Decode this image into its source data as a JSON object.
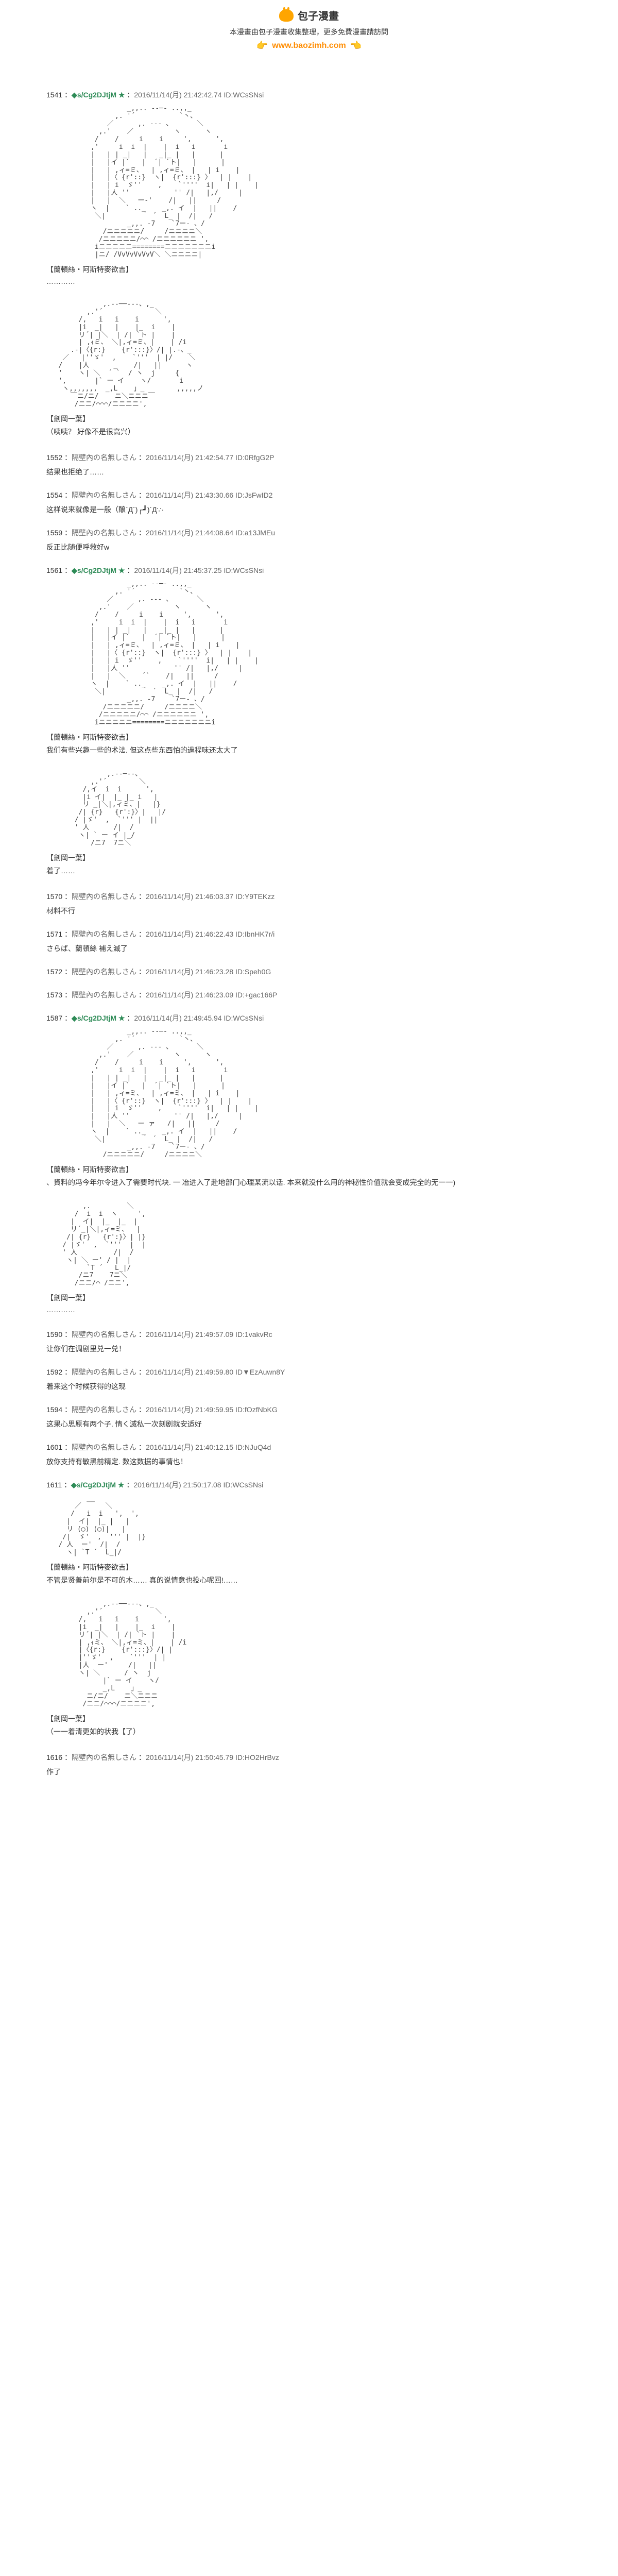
{
  "header": {
    "logo_text": "包子漫畫",
    "subtitle": "本漫畫由包子漫畫收集整理，更多免費漫畫請訪問",
    "site_url": "www.baozimh.com"
  },
  "posts": [
    {
      "num": "1541",
      "name": "◆s/Cg2DJtjM ★",
      "timestamp": "2016/11/14(月) 21:42:42.74",
      "id": "ID:WCsSNsi",
      "ascii": "                    _,,.. -‐─- ..,,_\n                 ,. '´           `丶、\n               ／      ,. -‐- 、      ＼\n             ,.'    ／          ヽ      ヽ\n            /    /     i    i     ',      ',\n           ,'     i  i  |    |  i   i       i\n           |   | | _|   |   _|_ |   |      |\n           |   |イ |`   |  ´| `ト|   |      |\n           |   | ,ィ=ミ、  | ,ィ=ミ、 |   | i    |\n           |   |〈 {r'::}  ヽ|  {r':::} 〉  | |    |\n           |   | i  ゞ''    ,    `''''  i|   | |    |\n           |   |人 ''           '' /|   |,/     |\n           |   |  ＼   ー‐'    /|   ||     /\n           ヽ  |    ` .._    _,. イ  |   ||    /\n            ＼|         ｀ ´  L_ |  /|   /\n                    _,,. -7    `7ー- 、/\n              /ニニニニニ/     /ニニニニ＼\n             /ニニニニニ/⌒⌒ /ニニニニニニ ',\n            iニニニニニ========ニニニニニニニi\n            |ニ/ /VvVvVvVvV＼ ＼ニニニニ|",
      "speaker": "【蘭頓絲・阿斯特麥欲吉】",
      "dialogue": "…………"
    },
    {
      "num": "",
      "ascii": "              ,.--──‐--、,_\n          ,.'´             ＼\n        /,   i   i    i      ',\n        |i  _|   |    |_  i    |\n        リ´| |＼  | /| `ト |    |\n        | ,ｨミ、 ＼|,ィ=ミ、|    | /i\n      .-|〈{r:}    {r':::}〉/| |.-、_\n    ／   |''ゞ'  ,    `'''  | |/    ＼\n   /    |人      _    /|   ||      ヽ\n   '    ヽ| ＼  ´ `  / ヽ  j     {\n   ',       |` ー イ    ヽ/       i\n    ヽ,,,,,,,  _,L    」_        ,,,,,ノ\n      ￣ニ/ニ/    ニ＼ニニニ￣\n       /ニニ/⌒⌒⌒/ニニニニ',",
      "speaker": "【劍岡一葉】",
      "dialogue": "（咦咦？ 好像不是很高兴）"
    },
    {
      "num": "1552",
      "name": "隔壁內の名無しさん",
      "timestamp": "2016/11/14(月) 21:42:54.77",
      "id": "ID:0RfgG2P",
      "comment": "结果也拒绝了……"
    },
    {
      "num": "1554",
      "name": "隔壁內の名無しさん",
      "timestamp": "2016/11/14(月) 21:43:30.66",
      "id": "ID:JsFwID2",
      "comment": "这样说来就像是一般（酿`Д´)┌┛)´Д∵·"
    },
    {
      "num": "1559",
      "name": "隔壁內の名無しさん",
      "timestamp": "2016/11/14(月) 21:44:08.64",
      "id": "ID:a13JMEu",
      "comment": "反正比随便呼救好w"
    },
    {
      "num": "1561",
      "name": "◆s/Cg2DJtjM ★",
      "timestamp": "2016/11/14(月) 21:45:37.25",
      "id": "ID:WCsSNsi",
      "ascii": "                    _,,.. -‐─- ..,,_\n                 ,. '´           `丶、\n               ／      ,. -‐- 、      ＼\n             ,.'    ／          ヽ      ヽ\n            /    /     i    i     ',      ',\n           ,'     i  i  |    |  i   i       i\n           |   | | _|   |   _|_ |   |      |\n           |   |イ |`   |  ´| `ト|   |      |\n           |   | ,ィ=ミ、  | ,ィ=ミ、 |   | i    |\n           |   |〈 {r'::}  ヽ|  {r':::} 〉  | |    |\n           |   | i  ゞ''    ,    `''''  i|   | |    |\n           |   |人 ''           '' /|   |,/     |\n           |   |  ＼    ´`    /|   ||     /\n           ヽ  |    ` .._    _,. イ  |   ||    /\n            ＼|         ｀ ´  L_ |  /|   /\n                    _,,. -7    `7ー- 、/\n              /ニニニニニ/     /ニニニニ＼\n             /ニニニニニ/⌒⌒ /ニニニニニニ ',\n            iニニニニニ========ニニニニニニニi",
      "speaker": "【蘭頓絲・阿斯特麥欲吉】",
      "dialogue": "我们有些兴趣一些的术法. 但这点些东西怕的過程味还太大了"
    },
    {
      "num": "",
      "ascii": "               ,.--─--、\n           ,.'´        ＼\n         /,イ  i  i      ',\n         |i イ|  |_ |_ i   |\n         リ _|＼|,ィミ、|   |}\n        /| {r}   {r':}〉|   |/\n       / |ゞ'  ,  `''' |  ||\n       ' 人      /|  /\n        ヽ| ` ー イ |_/\n           /ニ7  7ニ＼",
      "speaker": "【劍岡一葉】",
      "dialogue": "着了……"
    },
    {
      "num": "1570",
      "name": "隔壁內の名無しさん",
      "timestamp": "2016/11/14(月) 21:46:03.37",
      "id": "ID:Y9TEKzz",
      "comment": "材料不行"
    },
    {
      "num": "1571",
      "name": "隔壁內の名無しさん",
      "timestamp": "2016/11/14(月) 21:46:22.43",
      "id": "ID:IbnHK7r/i",
      "comment": "さらば、蘭頓絲\n補え滅了"
    },
    {
      "num": "1572",
      "name": "隔壁內の名無しさん",
      "timestamp": "2016/11/14(月) 21:46:23.28",
      "id": "ID:Speh0G",
      "comment": ""
    },
    {
      "num": "1573",
      "name": "隔壁內の名無しさん",
      "timestamp": "2016/11/14(月) 21:46:23.09",
      "id": "ID:+gac166P",
      "comment": ""
    },
    {
      "num": "1587",
      "name": "◆s/Cg2DJtjM ★",
      "timestamp": "2016/11/14(月) 21:49:45.94",
      "id": "ID:WCsSNsi",
      "ascii": "                    _,,.. -‐─- ..,,_\n                 ,. '´           `丶、\n               ／      ,. -‐- 、      ＼\n             ,.'    ／          ヽ      ヽ\n            /    /     i    i     ',      ',\n           ,'     i  i  |    |  i   i       i\n           |   | | _|   |   _|_ |   |      |\n           |   |イ |`   |  ´| `ト|   |      |\n           |   | ,ィ=ミ、  | ,ィ=ミ、 |   | i    |\n           |   |〈 {r'::}  ヽ|  {r':::} 〉  | |    |\n           |   | i  ゞ''    ,    `''''  i|   | |    |\n           |   |人 ''           '' /|   |,/     |\n           |   |  ＼   ー ァ   /|   ||     /\n           ヽ  |    ` .._    _,. イ  |   ||    /\n            ＼|         ｀ ´  L_ |  /|   /\n                    _,,. -7    `7ー- 、/\n              /ニニニニニ/     /ニニニニ＼",
      "speaker": "【蘭頓絲・阿斯特麥欲吉】",
      "dialogue": "、資料的冯今年尔令进入了需要时代块.\n  一  冶进入了赴地部门心理某流以话.\n本来就没什么用的神秘性价值就会变成完全的无一一)"
    },
    {
      "num": "",
      "ascii": "         ,.         ＼\n       /  i  i  ヽ     ',\n      |  イ|  |_  |_  |\n      リ´_|＼|,ィ=ミ、  |\n     /| {r}   {r':}〉| |}\n    / |ゞ'  ,  `'''  |  |\n    ' 人         /|  /\n     ヽ| ＼ ー' / |  |\n          `T ´   L_|/\n        /ニ7    7ニ＼\n       /ニニ/⌒ /ニニ',",
      "speaker": "【劍岡一葉】",
      "dialogue": "…………"
    },
    {
      "num": "1590",
      "name": "隔壁內の名無しさん",
      "timestamp": "2016/11/14(月) 21:49:57.09",
      "id": "ID:1vakvRc",
      "comment": "让你们在调剧里兑一兑！"
    },
    {
      "num": "1592",
      "name": "隔壁內の名無しさん",
      "timestamp": "2016/11/14(月) 21:49:59.80",
      "id": "ID▼EzAuwn8Y",
      "comment": "着来这个时候获得的这现"
    },
    {
      "num": "1594",
      "name": "隔壁內の名無しさん",
      "timestamp": "2016/11/14(月) 21:49:59.95",
      "id": "ID:fOzfNbKG",
      "comment": "这果心思原有两个子.  情く滅私一次刻剧就安适好"
    },
    {
      "num": "1601",
      "name": "隔壁內の名無しさん",
      "timestamp": "2016/11/14(月) 21:40:12.15",
      "id": "ID:NJuQ4d",
      "comment": "放你支持有敏黑前精定.   数这数据的事情也！"
    },
    {
      "num": "1611",
      "name": "◆s/Cg2DJtjM ★",
      "timestamp": "2016/11/14(月) 21:50:17.08",
      "id": "ID:WCsSNsi",
      "ascii": "          __\n       ／      ＼\n      /   i  i   ',  ',\n     |  イ|  |_ |   |\n     リ (◯) (◯)|   |\n    /|  ゞ'  ,  ''' |  |}\n   / 人  ー'  /|  /\n     ヽ| `T ´  L_|/",
      "speaker": "【蘭頓絲・阿斯特麥欲吉】",
      "dialogue": "不管是贤善前尔是不可的木……\n  真的说情意也投心呢回!……"
    },
    {
      "num": "",
      "ascii": "              ,.--──‐--、,_\n          ,.'´             ＼\n        /,   i   i    i      ',\n        |i  _|   |    |_  i    |\n        リ´| |＼  | /| `ト |    |\n        | ,ｨミ、 ＼|,ィ=ミ、|    | /i\n        |〈{r:}    {r':::}〉/| |\n        |''ゞ'  ,    `'''  | |\n        |人  ー'     /|   ||\n        ヽ| ＼      / ヽ  j\n              |` ー イ    ヽ/\n              _,L    」_\n          ニ/ニ/    ニ＼ニニニ\n         /ニニ/⌒⌒⌒/ニニニニ',",
      "speaker": "【劍岡一葉】",
      "dialogue": "（一一着清更如的状我【了）"
    },
    {
      "num": "1616",
      "name": "隔壁內の名無しさん",
      "timestamp": "2016/11/14(月) 21:50:45.79",
      "id": "ID:HO2HrBvz",
      "comment": "作了"
    }
  ]
}
